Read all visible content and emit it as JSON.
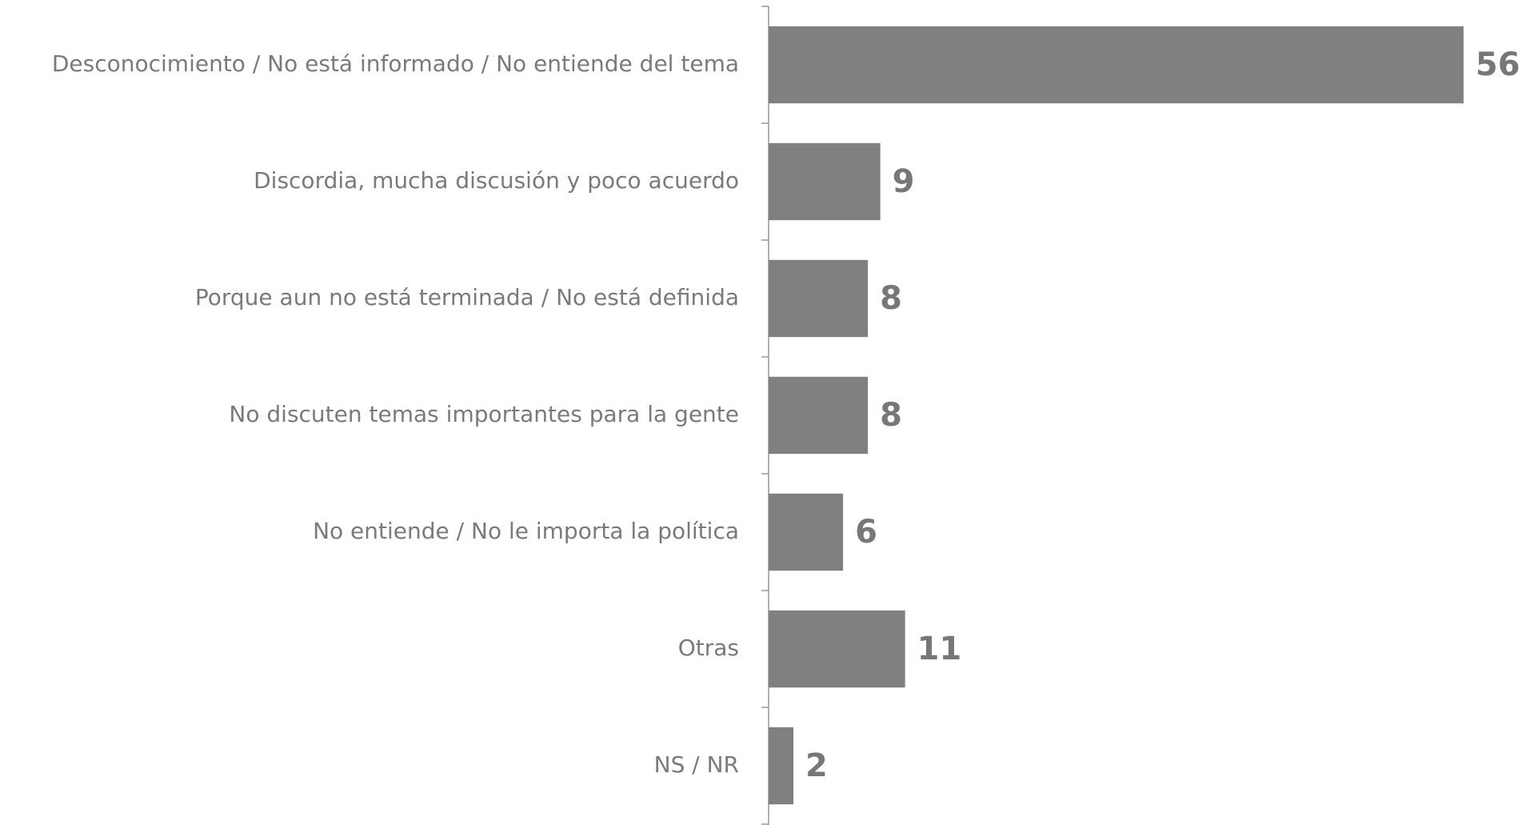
{
  "chart_data": {
    "type": "bar",
    "orientation": "horizontal",
    "categories": [
      "Desconocimiento / No está informado / No entiende del tema",
      "Discordia, mucha discusión y poco acuerdo",
      "Porque aun no está terminada / No está definida",
      "No discuten temas importantes para la gente",
      "No entiende / No le importa la política",
      "Otras",
      "NS / NR"
    ],
    "values": [
      56,
      9,
      8,
      8,
      6,
      11,
      2
    ],
    "color": "#808080",
    "xlim": [
      0,
      60
    ]
  }
}
